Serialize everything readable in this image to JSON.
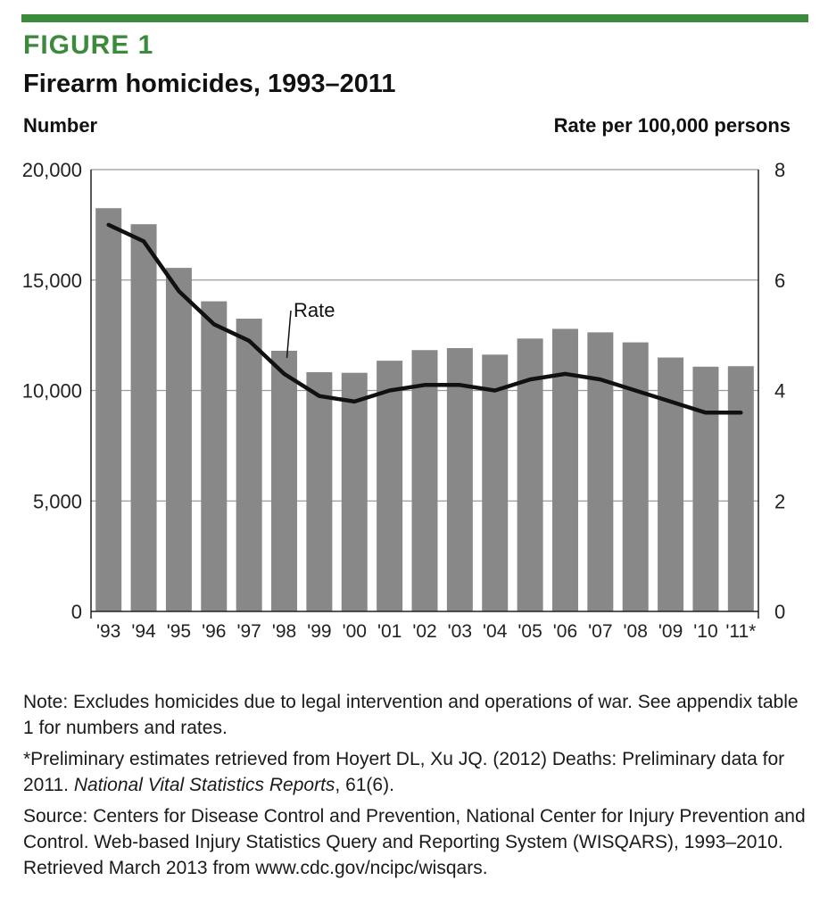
{
  "figure": {
    "label": "FIGURE 1",
    "title": "Firearm homicides, 1993–2011",
    "accent_color": "#3c8a3c"
  },
  "chart_data": {
    "type": "bar",
    "title": "Firearm homicides, 1993–2011",
    "xlabel": "",
    "ylabel": "Number",
    "y2label": "Rate per 100,000 persons",
    "categories": [
      "'93",
      "'94",
      "'95",
      "'96",
      "'97",
      "'98",
      "'99",
      "'00",
      "'01",
      "'02",
      "'03",
      "'04",
      "'05",
      "'06",
      "'07",
      "'08",
      "'09",
      "'10",
      "'11*"
    ],
    "series": [
      {
        "name": "Number",
        "type": "bar",
        "axis": "left",
        "color": "#888888",
        "values": [
          18253,
          17527,
          15551,
          14037,
          13252,
          11798,
          10828,
          10801,
          11348,
          11829,
          11920,
          11624,
          12352,
          12791,
          12632,
          12179,
          11493,
          11078,
          11101
        ]
      },
      {
        "name": "Rate",
        "type": "line",
        "axis": "right",
        "color": "#111111",
        "values": [
          7.0,
          6.7,
          5.8,
          5.2,
          4.9,
          4.3,
          3.9,
          3.8,
          4.0,
          4.1,
          4.1,
          4.0,
          4.2,
          4.3,
          4.2,
          4.0,
          3.8,
          3.6,
          3.6
        ]
      }
    ],
    "ylim": [
      0,
      20000
    ],
    "y2lim": [
      0,
      8
    ],
    "yticks": [
      "0",
      "5,000",
      "10,000",
      "15,000",
      "20,000"
    ],
    "y2ticks": [
      "0",
      "2",
      "4",
      "6",
      "8"
    ],
    "grid": true,
    "annotations": [
      {
        "text": "Rate",
        "series": "Rate"
      }
    ]
  },
  "notes": {
    "note": "Note: Excludes homicides due to legal intervention and operations of war. See appendix table 1 for numbers and rates.",
    "footnote_prefix": "*Preliminary estimates retrieved from Hoyert DL, Xu JQ. (2012) Deaths: Preliminary data for 2011. ",
    "footnote_journal": "National Vital Statistics Reports",
    "footnote_suffix": ", 61(6).",
    "source": "Source: Centers for Disease Control and Prevention, National Center for Injury Prevention and Control. Web-based Injury Statistics Query and Reporting System (WISQARS), 1993–2010. Retrieved March 2013 from www.cdc.gov/ncipc/wisqars."
  }
}
